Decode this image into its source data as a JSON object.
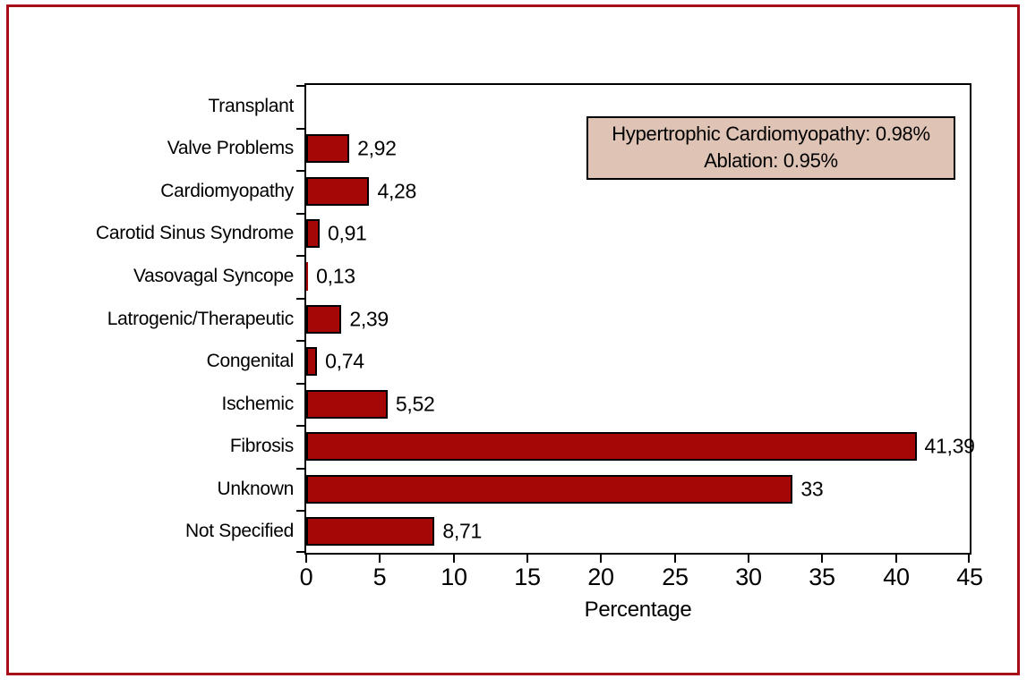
{
  "figure": {
    "frame_color": "#a60d14",
    "background": "#ffffff"
  },
  "chart_data": {
    "type": "bar",
    "orientation": "horizontal",
    "title": "",
    "xlabel": "Percentage",
    "ylabel": "",
    "xlim": [
      0,
      45
    ],
    "xticks": [
      0,
      5,
      10,
      15,
      20,
      25,
      30,
      35,
      40,
      45
    ],
    "grid": false,
    "categories": [
      "Transplant",
      "Valve Problems",
      "Cardiomyopathy",
      "Carotid Sinus Syndrome",
      "Vasovagal Syncope",
      "Latrogenic/Therapeutic",
      "Congenital",
      "Ischemic",
      "Fibrosis",
      "Unknown",
      "Not Specified"
    ],
    "values": [
      0,
      2.92,
      4.28,
      0.91,
      0.13,
      2.39,
      0.74,
      5.52,
      41.39,
      33,
      8.71
    ],
    "value_labels": [
      "",
      "2,92",
      "4,28",
      "0,91",
      "0,13",
      "2,39",
      "0,74",
      "5,52",
      "41,39",
      "33",
      "8,71"
    ],
    "bar_color": "#a50606",
    "bar_border_color": "#000000",
    "annotation": {
      "line1": "Hypertrophic Cardiomyopathy: 0.98%",
      "line2": "Ablation: 0.95%",
      "bg_color": "#dfc4b5",
      "border_color": "#000000"
    }
  }
}
